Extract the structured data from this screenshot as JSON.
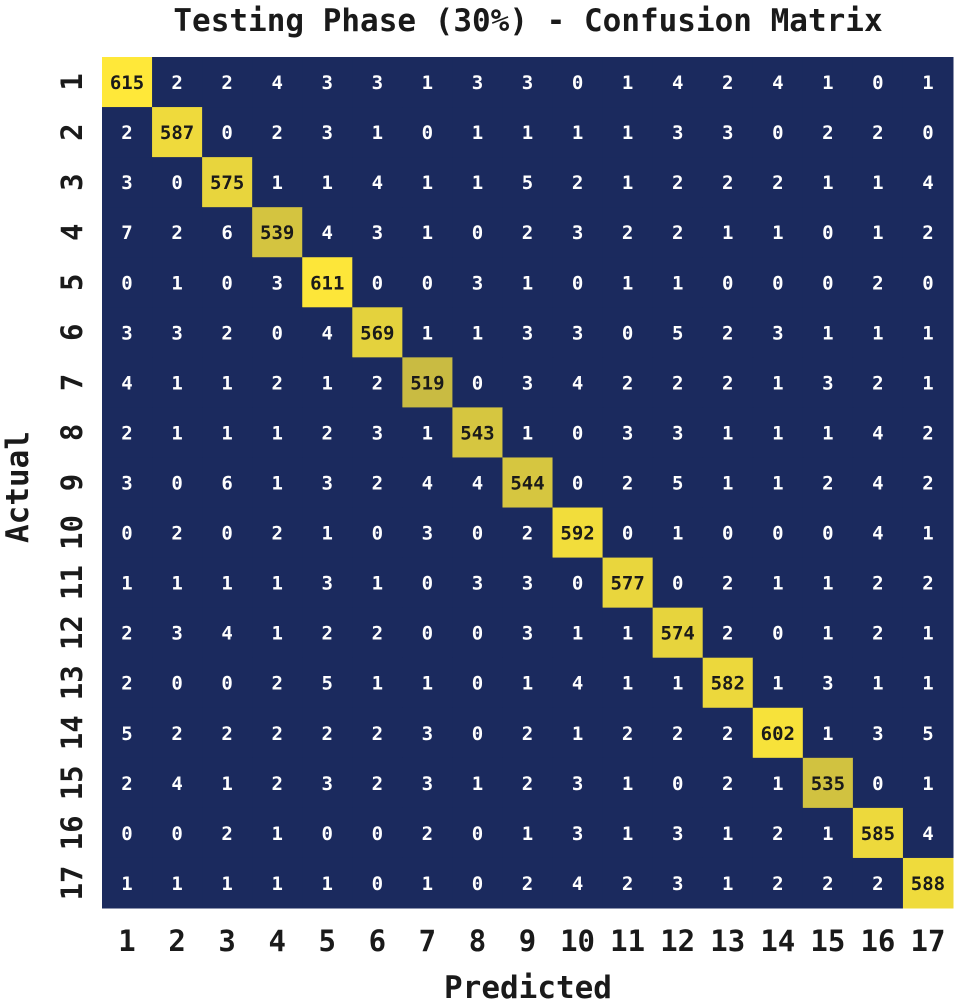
{
  "chart_data": {
    "type": "heatmap",
    "title": "Testing Phase (30%) - Confusion Matrix",
    "xlabel": "Predicted",
    "ylabel": "Actual",
    "categories": [
      "1",
      "2",
      "3",
      "4",
      "5",
      "6",
      "7",
      "8",
      "9",
      "10",
      "11",
      "12",
      "13",
      "14",
      "15",
      "16",
      "17"
    ],
    "matrix": [
      [
        615,
        2,
        2,
        4,
        3,
        3,
        1,
        3,
        3,
        0,
        1,
        4,
        2,
        4,
        1,
        0,
        1
      ],
      [
        2,
        587,
        0,
        2,
        3,
        1,
        0,
        1,
        1,
        1,
        1,
        3,
        3,
        0,
        2,
        2,
        0
      ],
      [
        3,
        0,
        575,
        1,
        1,
        4,
        1,
        1,
        5,
        2,
        1,
        2,
        2,
        2,
        1,
        1,
        4
      ],
      [
        7,
        2,
        6,
        539,
        4,
        3,
        1,
        0,
        2,
        3,
        2,
        2,
        1,
        1,
        0,
        1,
        2
      ],
      [
        0,
        1,
        0,
        3,
        611,
        0,
        0,
        3,
        1,
        0,
        1,
        1,
        0,
        0,
        0,
        2,
        0
      ],
      [
        3,
        3,
        2,
        0,
        4,
        569,
        1,
        1,
        3,
        3,
        0,
        5,
        2,
        3,
        1,
        1,
        1
      ],
      [
        4,
        1,
        1,
        2,
        1,
        2,
        519,
        0,
        3,
        4,
        2,
        2,
        2,
        1,
        3,
        2,
        1
      ],
      [
        2,
        1,
        1,
        1,
        2,
        3,
        1,
        543,
        1,
        0,
        3,
        3,
        1,
        1,
        1,
        4,
        2
      ],
      [
        3,
        0,
        6,
        1,
        3,
        2,
        4,
        4,
        544,
        0,
        2,
        5,
        1,
        1,
        2,
        4,
        2
      ],
      [
        0,
        2,
        0,
        2,
        1,
        0,
        3,
        0,
        2,
        592,
        0,
        1,
        0,
        0,
        0,
        4,
        1
      ],
      [
        1,
        1,
        1,
        1,
        3,
        1,
        0,
        3,
        3,
        0,
        577,
        0,
        2,
        1,
        1,
        2,
        2
      ],
      [
        2,
        3,
        4,
        1,
        2,
        2,
        0,
        0,
        3,
        1,
        1,
        574,
        2,
        0,
        1,
        2,
        1
      ],
      [
        2,
        0,
        0,
        2,
        5,
        1,
        1,
        0,
        1,
        4,
        1,
        1,
        582,
        1,
        3,
        1,
        1
      ],
      [
        5,
        2,
        2,
        2,
        2,
        2,
        3,
        0,
        2,
        1,
        2,
        2,
        2,
        602,
        1,
        3,
        5
      ],
      [
        2,
        4,
        1,
        2,
        3,
        2,
        3,
        1,
        2,
        3,
        1,
        0,
        2,
        1,
        535,
        0,
        1
      ],
      [
        0,
        0,
        2,
        1,
        0,
        0,
        2,
        0,
        1,
        3,
        1,
        3,
        1,
        2,
        1,
        585,
        4
      ],
      [
        1,
        1,
        1,
        1,
        1,
        0,
        1,
        0,
        2,
        4,
        2,
        3,
        1,
        2,
        2,
        2,
        588
      ]
    ],
    "colormap": [
      "#1b2a5e",
      "#ffe839"
    ],
    "low_text_color": "#ffffff",
    "high_text_color": "#1a1a1a",
    "grid": false,
    "legend": "none"
  }
}
